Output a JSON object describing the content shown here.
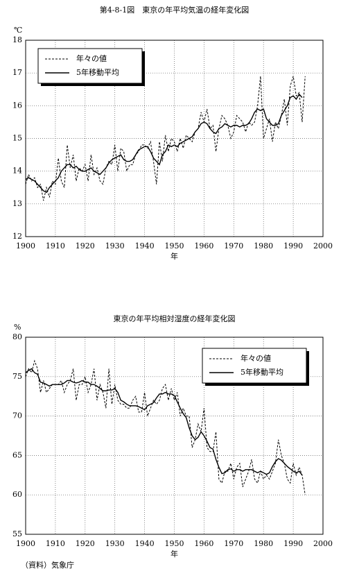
{
  "chart_data": [
    {
      "type": "line",
      "title": "第4-8-1図　東京の年平均気温の経年変化図",
      "y_unit": "℃",
      "x_label": "年",
      "x": [
        1900,
        1901,
        1902,
        1903,
        1904,
        1905,
        1906,
        1907,
        1908,
        1909,
        1910,
        1911,
        1912,
        1913,
        1914,
        1915,
        1916,
        1917,
        1918,
        1919,
        1920,
        1921,
        1922,
        1923,
        1924,
        1925,
        1926,
        1927,
        1928,
        1929,
        1930,
        1931,
        1932,
        1933,
        1934,
        1935,
        1936,
        1937,
        1938,
        1939,
        1940,
        1941,
        1942,
        1943,
        1944,
        1945,
        1946,
        1947,
        1948,
        1949,
        1950,
        1951,
        1952,
        1953,
        1954,
        1955,
        1956,
        1957,
        1958,
        1959,
        1960,
        1961,
        1962,
        1963,
        1964,
        1965,
        1966,
        1967,
        1968,
        1969,
        1970,
        1971,
        1972,
        1973,
        1974,
        1975,
        1976,
        1977,
        1978,
        1979,
        1980,
        1981,
        1982,
        1983,
        1984,
        1985,
        1986,
        1987,
        1988,
        1989,
        1990,
        1991,
        1992,
        1993,
        1994
      ],
      "series": [
        {
          "name": "年々の値",
          "color": "#000000",
          "style": "dashed",
          "values": [
            13.6,
            13.9,
            13.7,
            13.8,
            13.5,
            13.6,
            13.1,
            13.5,
            13.2,
            13.7,
            13.6,
            14.4,
            13.7,
            13.5,
            14.8,
            14.1,
            14.5,
            13.7,
            14.1,
            14.0,
            14.2,
            13.7,
            14.5,
            13.9,
            14.1,
            13.7,
            13.6,
            14.1,
            14.3,
            14.2,
            14.8,
            14.0,
            14.7,
            14.6,
            14.0,
            14.2,
            14.2,
            14.5,
            14.6,
            14.8,
            14.8,
            14.7,
            14.9,
            14.3,
            13.6,
            14.9,
            14.3,
            15.1,
            14.6,
            15.0,
            14.9,
            14.6,
            15.0,
            14.7,
            15.1,
            15.0,
            14.9,
            15.2,
            15.3,
            15.8,
            15.5,
            15.9,
            15.3,
            15.4,
            14.6,
            15.3,
            15.7,
            15.6,
            15.4,
            15.0,
            15.2,
            15.7,
            15.6,
            15.5,
            15.2,
            15.5,
            15.4,
            15.5,
            16.0,
            16.9,
            15.0,
            15.3,
            15.6,
            14.9,
            15.5,
            15.3,
            15.7,
            16.2,
            15.4,
            16.6,
            16.9,
            16.3,
            16.4,
            15.5,
            16.9
          ]
        },
        {
          "name": "5年移動平均",
          "color": "#000000",
          "style": "solid",
          "values": [
            13.75,
            13.8,
            13.75,
            13.7,
            13.6,
            13.5,
            13.4,
            13.35,
            13.5,
            13.6,
            13.7,
            13.8,
            14.0,
            14.1,
            14.2,
            14.2,
            14.1,
            14.15,
            14.05,
            14.0,
            14.0,
            14.05,
            14.1,
            14.0,
            13.95,
            13.9,
            14.0,
            14.1,
            14.25,
            14.35,
            14.4,
            14.45,
            14.5,
            14.35,
            14.3,
            14.3,
            14.35,
            14.5,
            14.65,
            14.7,
            14.75,
            14.75,
            14.6,
            14.4,
            14.3,
            14.2,
            14.5,
            14.6,
            14.8,
            14.75,
            14.8,
            14.75,
            14.85,
            14.9,
            14.95,
            15.0,
            15.05,
            15.2,
            15.3,
            15.45,
            15.5,
            15.45,
            15.3,
            15.2,
            15.15,
            15.3,
            15.35,
            15.45,
            15.4,
            15.35,
            15.4,
            15.4,
            15.35,
            15.4,
            15.4,
            15.45,
            15.6,
            15.8,
            15.9,
            15.85,
            15.9,
            15.6,
            15.5,
            15.4,
            15.4,
            15.45,
            15.7,
            15.85,
            16.0,
            16.25,
            16.3,
            16.2,
            16.35,
            16.25,
            null
          ]
        }
      ],
      "xlim": [
        1900,
        2000
      ],
      "xticks": [
        1900,
        1910,
        1920,
        1930,
        1940,
        1950,
        1960,
        1970,
        1980,
        1990,
        2000
      ],
      "ylim": [
        12,
        18
      ],
      "yticks": [
        12,
        13,
        14,
        15,
        16,
        17,
        18
      ],
      "grid": true,
      "legend": "upper left"
    },
    {
      "type": "line",
      "title": "東京の年平均相対湿度の経年変化図",
      "y_unit": "%",
      "x_label": "年",
      "x": [
        1900,
        1901,
        1902,
        1903,
        1904,
        1905,
        1906,
        1907,
        1908,
        1909,
        1910,
        1911,
        1912,
        1913,
        1914,
        1915,
        1916,
        1917,
        1918,
        1919,
        1920,
        1921,
        1922,
        1923,
        1924,
        1925,
        1926,
        1927,
        1928,
        1929,
        1930,
        1931,
        1932,
        1933,
        1934,
        1935,
        1936,
        1937,
        1938,
        1939,
        1940,
        1941,
        1942,
        1943,
        1944,
        1945,
        1946,
        1947,
        1948,
        1949,
        1950,
        1951,
        1952,
        1953,
        1954,
        1955,
        1956,
        1957,
        1958,
        1959,
        1960,
        1961,
        1962,
        1963,
        1964,
        1965,
        1966,
        1967,
        1968,
        1969,
        1970,
        1971,
        1972,
        1973,
        1974,
        1975,
        1976,
        1977,
        1978,
        1979,
        1980,
        1981,
        1982,
        1983,
        1984,
        1985,
        1986,
        1987,
        1988,
        1989,
        1990,
        1991,
        1992,
        1993,
        1994
      ],
      "series": [
        {
          "name": "年々の値",
          "color": "#000000",
          "style": "dashed",
          "values": [
            75,
            76,
            75.5,
            77,
            76,
            73,
            74.5,
            73,
            73.5,
            74,
            74,
            74,
            74.5,
            73,
            74,
            74.5,
            76,
            72,
            74,
            74,
            75,
            73,
            74,
            76,
            72,
            74,
            73,
            71,
            76,
            71.5,
            74,
            72,
            71.5,
            71.5,
            71,
            71,
            72,
            72.5,
            70.5,
            70.5,
            73,
            70,
            71,
            72,
            71.5,
            72,
            73.5,
            74,
            72,
            73.5,
            72,
            73,
            70,
            71,
            70,
            70,
            66,
            67,
            69,
            68,
            71,
            66,
            65.5,
            65.5,
            68,
            62,
            61.5,
            63,
            63,
            64,
            62,
            63.5,
            64,
            61,
            62,
            63,
            64.5,
            62,
            61.5,
            63,
            62,
            62.5,
            62,
            63,
            64,
            67,
            65,
            64,
            62,
            61.5,
            64,
            62.5,
            63.5,
            62.5,
            60
          ]
        },
        {
          "name": "5年移動平均",
          "color": "#000000",
          "style": "solid",
          "values": [
            75.5,
            75.8,
            76,
            75.5,
            75.3,
            74.3,
            74.2,
            74,
            73.8,
            74,
            74,
            74,
            74,
            74.2,
            74.5,
            74.5,
            74.3,
            74.2,
            74.3,
            74.5,
            74.3,
            74.3,
            74,
            74,
            73.8,
            73.5,
            73.2,
            73.2,
            73.3,
            73.3,
            73.5,
            73,
            72,
            71.8,
            71.5,
            71.3,
            71.3,
            71.3,
            71.2,
            71,
            70.8,
            71.3,
            71.5,
            71.7,
            72.3,
            72.8,
            72.8,
            73,
            72.8,
            72.8,
            72.6,
            71.8,
            71,
            70.3,
            69.8,
            68.5,
            67.5,
            67,
            67.3,
            68,
            67.5,
            66.8,
            66,
            65.8,
            64.5,
            63.5,
            62.7,
            62.8,
            63.2,
            63.3,
            63,
            63.2,
            63.2,
            63,
            63.2,
            63.2,
            63.2,
            63,
            62.8,
            63,
            62.8,
            62.6,
            62.8,
            63.6,
            64.2,
            64.6,
            64.4,
            64,
            63.6,
            63.3,
            63,
            62.8,
            63,
            62.5,
            null
          ]
        }
      ],
      "xlim": [
        1900,
        2000
      ],
      "xticks": [
        1900,
        1910,
        1920,
        1930,
        1940,
        1950,
        1960,
        1970,
        1980,
        1990,
        2000
      ],
      "ylim": [
        55,
        80
      ],
      "yticks": [
        55,
        60,
        65,
        70,
        75,
        80
      ],
      "grid": true,
      "legend": "upper right"
    }
  ],
  "footnote": "（資料）気象庁"
}
